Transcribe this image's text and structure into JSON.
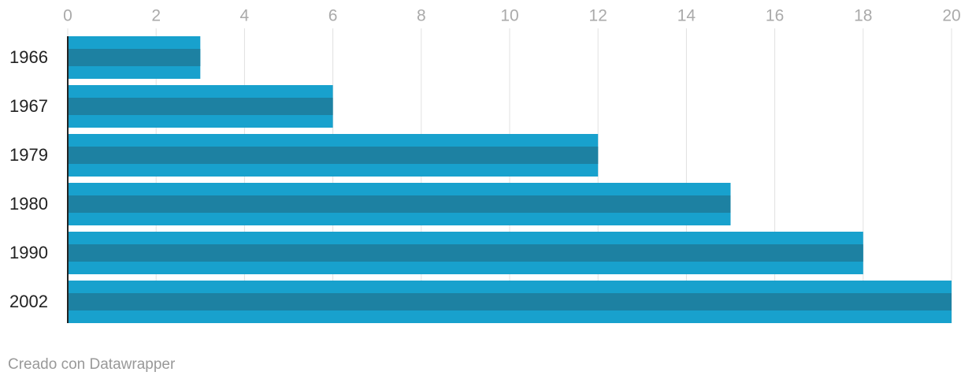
{
  "chart_data": {
    "type": "bar",
    "orientation": "horizontal",
    "categories": [
      "1966",
      "1967",
      "1979",
      "1980",
      "1990",
      "2002"
    ],
    "values": [
      3,
      6,
      12,
      15,
      18,
      20
    ],
    "color": "#18a1cd",
    "inner_color": "#1d81a2",
    "xlim": [
      0,
      20
    ],
    "xticks": [
      0,
      2,
      4,
      6,
      8,
      10,
      12,
      14,
      16,
      18,
      20
    ],
    "grid": true
  },
  "footer": "Creado con Datawrapper"
}
